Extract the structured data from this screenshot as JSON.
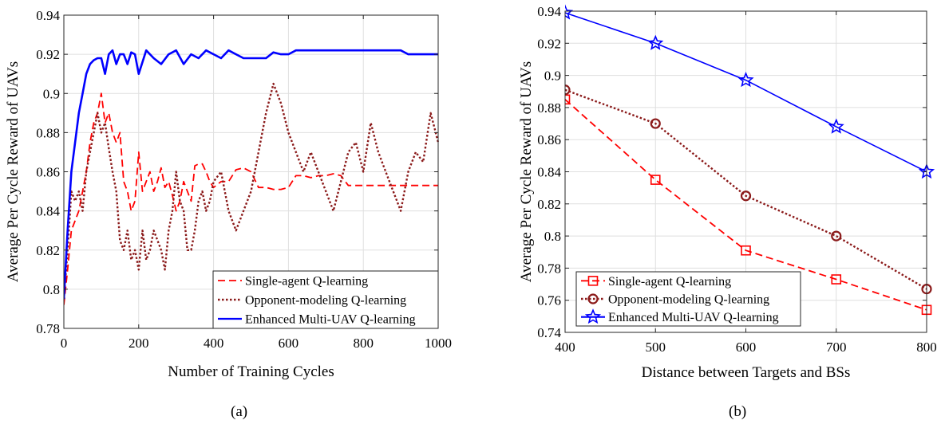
{
  "subfigure_labels": [
    "(a)",
    "(b)"
  ],
  "colors": {
    "single": "#ff0000",
    "opponent": "#8b1a1a",
    "enhanced": "#0000ff",
    "grid": "#dfdfdf",
    "axis": "#262626"
  },
  "chart_data": [
    {
      "type": "line",
      "xlabel": "Number of Training Cycles",
      "ylabel": "Average Per Cycle Reward of UAVs",
      "xlim": [
        0,
        1000
      ],
      "ylim": [
        0.78,
        0.94
      ],
      "xticks": [
        0,
        200,
        400,
        600,
        800,
        1000
      ],
      "yticks": [
        0.78,
        0.8,
        0.82,
        0.84,
        0.86,
        0.88,
        0.9,
        0.92,
        0.94
      ],
      "xtick_labels": [
        "0",
        "200",
        "400",
        "600",
        "800",
        "1000"
      ],
      "ytick_labels": [
        "0.78",
        "0.8",
        "0.82",
        "0.84",
        "0.86",
        "0.88",
        "0.9",
        "0.92",
        "0.94"
      ],
      "grid": true,
      "legend_position": "bottom-right",
      "series": [
        {
          "name": "Single-agent Q-learning",
          "style": "dashed",
          "x": [
            0,
            10,
            20,
            30,
            40,
            50,
            60,
            70,
            80,
            90,
            100,
            110,
            120,
            130,
            140,
            150,
            160,
            170,
            180,
            190,
            200,
            210,
            220,
            230,
            240,
            250,
            260,
            270,
            280,
            290,
            300,
            310,
            320,
            330,
            340,
            350,
            360,
            370,
            380,
            390,
            400,
            420,
            440,
            460,
            480,
            500,
            520,
            540,
            560,
            580,
            600,
            620,
            640,
            660,
            680,
            700,
            720,
            740,
            760,
            780,
            800,
            850,
            900,
            950,
            1000
          ],
          "y": [
            0.792,
            0.81,
            0.83,
            0.835,
            0.84,
            0.85,
            0.86,
            0.875,
            0.885,
            0.89,
            0.9,
            0.885,
            0.89,
            0.88,
            0.875,
            0.88,
            0.855,
            0.85,
            0.84,
            0.845,
            0.87,
            0.85,
            0.855,
            0.86,
            0.85,
            0.855,
            0.862,
            0.852,
            0.855,
            0.848,
            0.84,
            0.845,
            0.855,
            0.85,
            0.845,
            0.863,
            0.864,
            0.864,
            0.86,
            0.855,
            0.852,
            0.855,
            0.855,
            0.861,
            0.862,
            0.86,
            0.852,
            0.852,
            0.851,
            0.851,
            0.852,
            0.858,
            0.858,
            0.857,
            0.858,
            0.858,
            0.859,
            0.858,
            0.853,
            0.853,
            0.853,
            0.853,
            0.853,
            0.853,
            0.853
          ]
        },
        {
          "name": "Opponent-modeling Q-learning",
          "style": "dotted",
          "x": [
            0,
            10,
            20,
            30,
            40,
            50,
            60,
            70,
            80,
            90,
            100,
            110,
            120,
            130,
            140,
            150,
            160,
            170,
            180,
            190,
            200,
            210,
            220,
            230,
            240,
            250,
            260,
            270,
            280,
            290,
            300,
            310,
            320,
            330,
            340,
            350,
            360,
            370,
            380,
            390,
            400,
            420,
            440,
            460,
            480,
            500,
            520,
            540,
            560,
            580,
            600,
            620,
            640,
            660,
            680,
            700,
            720,
            740,
            760,
            780,
            800,
            820,
            840,
            860,
            880,
            900,
            920,
            940,
            960,
            980,
            1000
          ],
          "y": [
            0.795,
            0.82,
            0.85,
            0.845,
            0.85,
            0.84,
            0.86,
            0.87,
            0.88,
            0.89,
            0.88,
            0.885,
            0.872,
            0.86,
            0.85,
            0.825,
            0.82,
            0.83,
            0.815,
            0.82,
            0.81,
            0.83,
            0.815,
            0.82,
            0.83,
            0.825,
            0.82,
            0.81,
            0.83,
            0.84,
            0.86,
            0.845,
            0.84,
            0.82,
            0.82,
            0.83,
            0.845,
            0.85,
            0.84,
            0.845,
            0.855,
            0.86,
            0.84,
            0.83,
            0.84,
            0.85,
            0.87,
            0.89,
            0.905,
            0.895,
            0.88,
            0.87,
            0.86,
            0.87,
            0.86,
            0.85,
            0.84,
            0.855,
            0.87,
            0.875,
            0.86,
            0.885,
            0.87,
            0.86,
            0.85,
            0.84,
            0.86,
            0.87,
            0.865,
            0.89,
            0.875
          ]
        },
        {
          "name": "Enhanced Multi-UAV Q-learning",
          "style": "solid",
          "x": [
            0,
            10,
            20,
            30,
            40,
            50,
            60,
            70,
            80,
            90,
            100,
            110,
            120,
            130,
            140,
            150,
            160,
            170,
            180,
            190,
            200,
            220,
            240,
            260,
            280,
            300,
            320,
            340,
            360,
            380,
            400,
            420,
            440,
            460,
            480,
            500,
            520,
            540,
            560,
            580,
            600,
            620,
            640,
            660,
            700,
            750,
            800,
            850,
            900,
            920,
            950,
            1000
          ],
          "y": [
            0.795,
            0.83,
            0.86,
            0.875,
            0.89,
            0.9,
            0.91,
            0.915,
            0.917,
            0.918,
            0.918,
            0.91,
            0.92,
            0.922,
            0.915,
            0.92,
            0.92,
            0.915,
            0.921,
            0.92,
            0.91,
            0.922,
            0.918,
            0.915,
            0.92,
            0.922,
            0.915,
            0.92,
            0.918,
            0.922,
            0.92,
            0.918,
            0.922,
            0.92,
            0.918,
            0.918,
            0.918,
            0.918,
            0.921,
            0.92,
            0.92,
            0.922,
            0.922,
            0.922,
            0.922,
            0.922,
            0.922,
            0.922,
            0.922,
            0.92,
            0.92,
            0.92
          ]
        }
      ]
    },
    {
      "type": "line",
      "xlabel": "Distance between Targets and BSs",
      "ylabel": "Average Per Cycle Reward of UAVs",
      "xlim": [
        400,
        800
      ],
      "ylim": [
        0.74,
        0.94
      ],
      "xticks": [
        400,
        500,
        600,
        700,
        800
      ],
      "yticks": [
        0.74,
        0.76,
        0.78,
        0.8,
        0.82,
        0.84,
        0.86,
        0.88,
        0.9,
        0.92,
        0.94
      ],
      "xtick_labels": [
        "400",
        "500",
        "600",
        "700",
        "800"
      ],
      "ytick_labels": [
        "0.74",
        "0.76",
        "0.78",
        "0.8",
        "0.82",
        "0.84",
        "0.86",
        "0.88",
        "0.9",
        "0.92",
        "0.94"
      ],
      "grid": true,
      "legend_position": "bottom-left",
      "series": [
        {
          "name": "Single-agent Q-learning",
          "style": "dashed",
          "marker": "square",
          "x": [
            400,
            500,
            600,
            700,
            800
          ],
          "y": [
            0.885,
            0.835,
            0.791,
            0.773,
            0.754
          ]
        },
        {
          "name": "Opponent-modeling Q-learning",
          "style": "dotted",
          "marker": "circle",
          "x": [
            400,
            500,
            600,
            700,
            800
          ],
          "y": [
            0.891,
            0.87,
            0.825,
            0.8,
            0.767
          ]
        },
        {
          "name": "Enhanced Multi-UAV Q-learning",
          "style": "solid",
          "marker": "star",
          "x": [
            400,
            500,
            600,
            700,
            800
          ],
          "y": [
            0.939,
            0.92,
            0.897,
            0.868,
            0.84
          ]
        }
      ]
    }
  ]
}
